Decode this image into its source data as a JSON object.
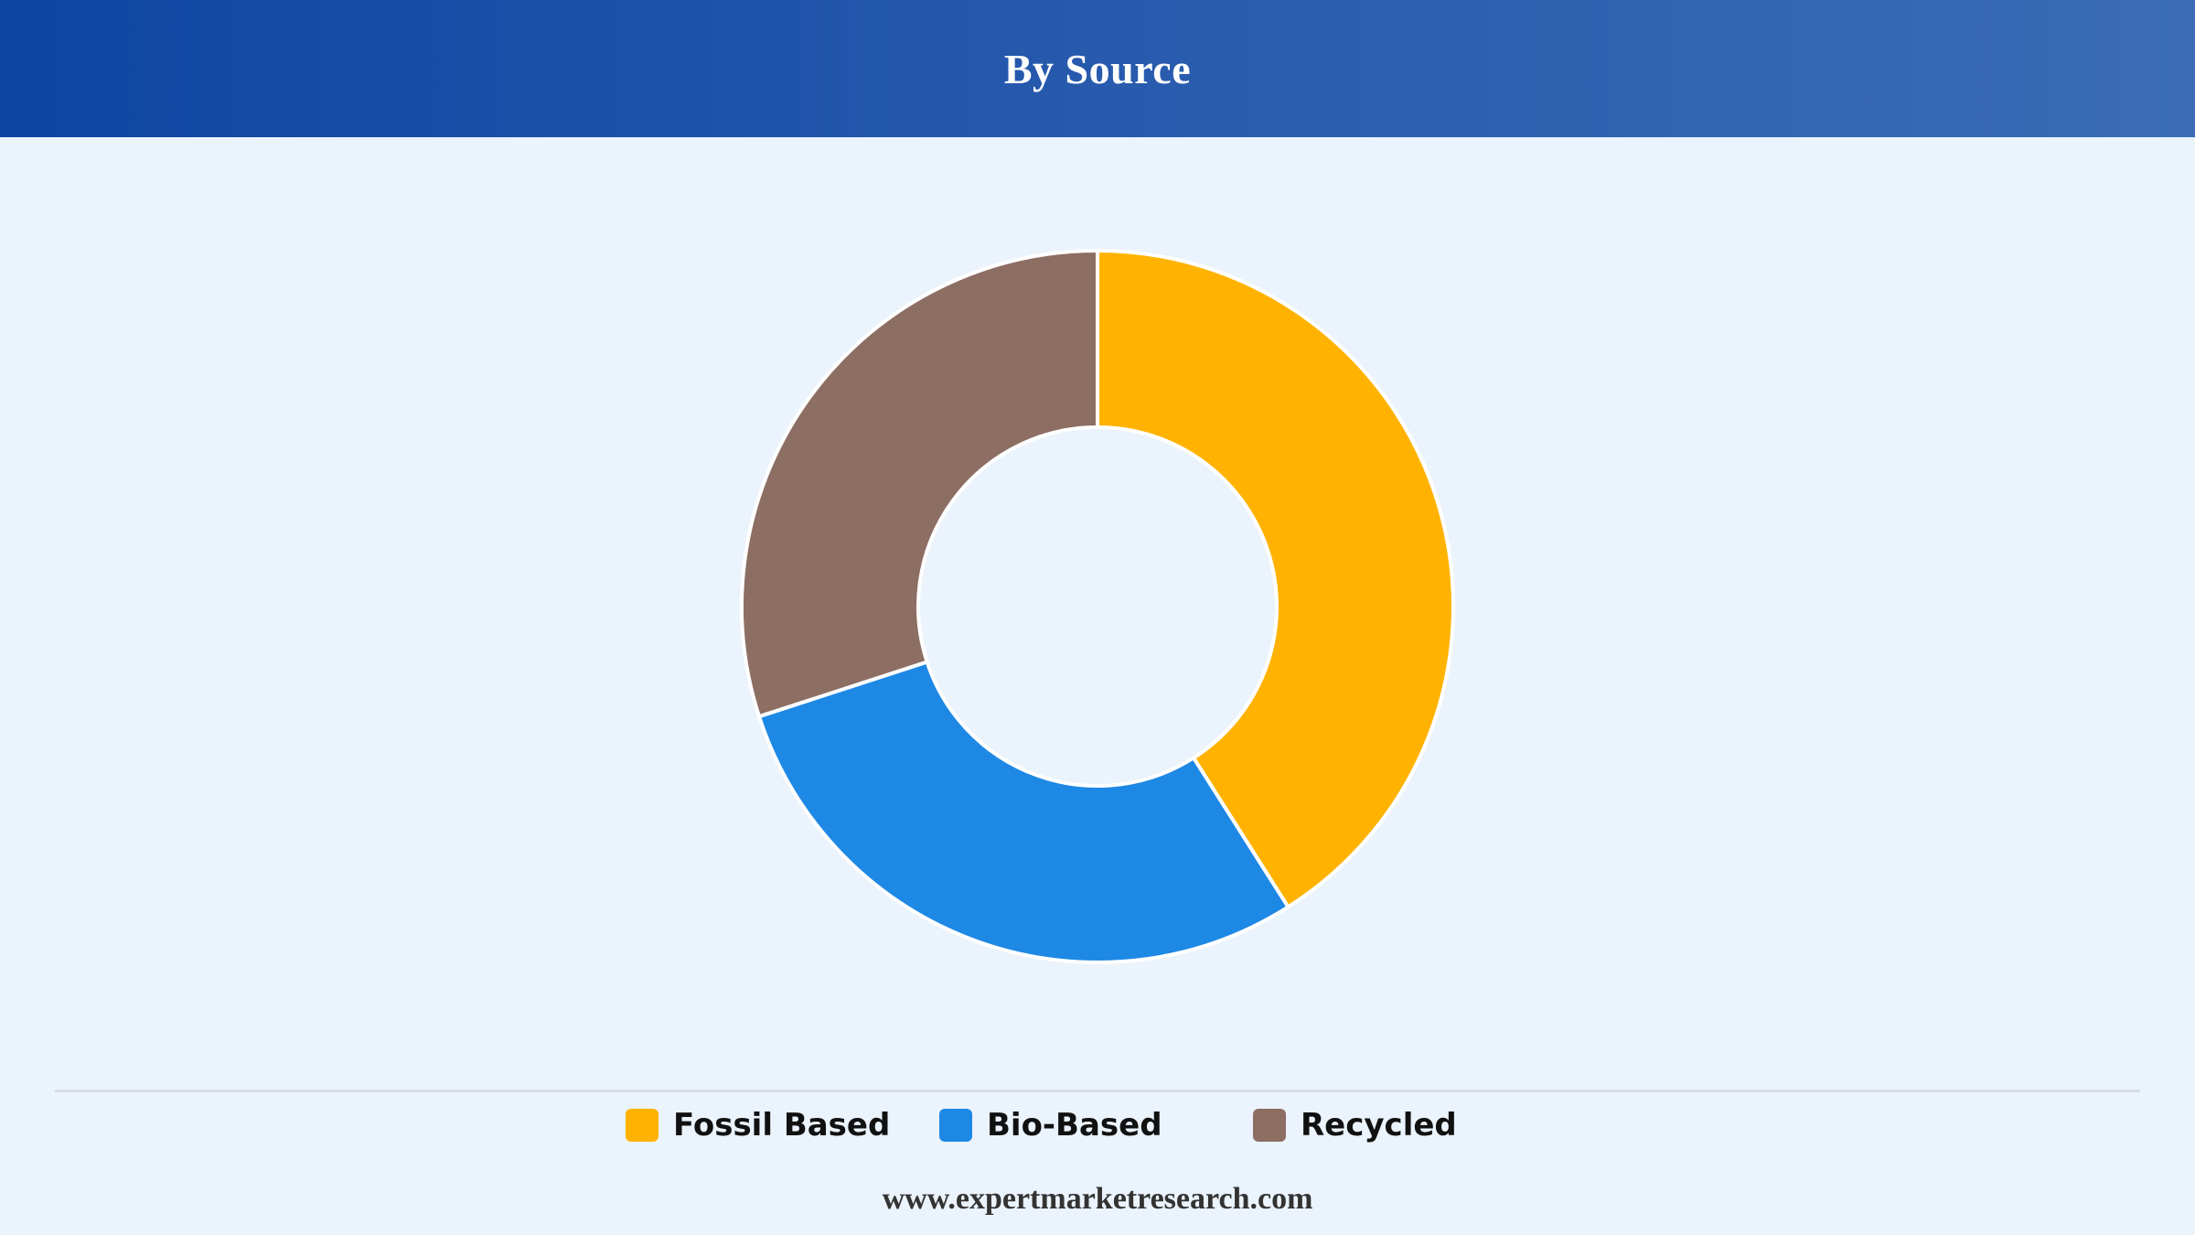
{
  "header": {
    "title": "By Source"
  },
  "chart_data": {
    "type": "pie",
    "variant": "donut",
    "title": "By Source",
    "categories": [
      "Fossil Based",
      "Bio-Based",
      "Recycled"
    ],
    "values": [
      41,
      29,
      30
    ],
    "unit": "percent",
    "colors": [
      "#ffb300",
      "#1e88e5",
      "#8d6e63"
    ],
    "legend_position": "bottom",
    "grid": false
  },
  "legend": {
    "items": [
      {
        "label": "Fossil Based",
        "color": "#ffb300"
      },
      {
        "label": "Bio-Based",
        "color": "#1e88e5"
      },
      {
        "label": "Recycled",
        "color": "#8d6e63"
      }
    ]
  },
  "footer": {
    "source": "www.expertmarketresearch.com"
  }
}
